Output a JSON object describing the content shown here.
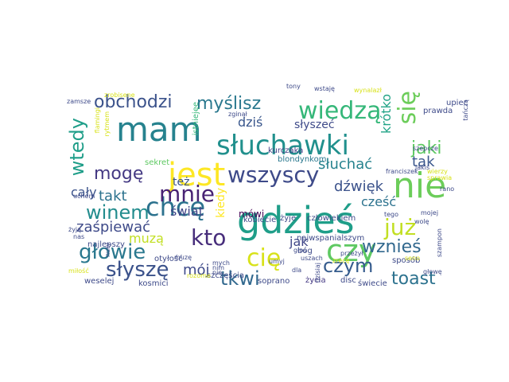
{
  "cloud": {
    "words": [
      {
        "text": "gdzieś",
        "color": "#1f9e89"
      },
      {
        "text": "mam",
        "color": "#26828e"
      },
      {
        "text": "słuchawki",
        "color": "#21908d"
      },
      {
        "text": "nie",
        "color": "#6ccd5a"
      },
      {
        "text": "jest",
        "color": "#fde725"
      },
      {
        "text": "czy",
        "color": "#5ec962"
      },
      {
        "text": "chcę",
        "color": "#2c728e"
      },
      {
        "text": "wiedzą",
        "color": "#35b779"
      },
      {
        "text": "się",
        "color": "#6ccd5a"
      },
      {
        "text": "wszyscy",
        "color": "#3e4a89"
      },
      {
        "text": "obchodzi",
        "color": "#3b528b"
      },
      {
        "text": "myślisz",
        "color": "#2a788e"
      },
      {
        "text": "wtedy",
        "color": "#1f9e89"
      },
      {
        "text": "mogę",
        "color": "#443983"
      },
      {
        "text": "mnie",
        "color": "#482374"
      },
      {
        "text": "kto",
        "color": "#472d7b"
      },
      {
        "text": "cię",
        "color": "#d8e219"
      },
      {
        "text": "głowie",
        "color": "#2a788e"
      },
      {
        "text": "słyszę",
        "color": "#3b528b"
      },
      {
        "text": "już",
        "color": "#c2df23"
      },
      {
        "text": "wznieś",
        "color": "#31688e"
      },
      {
        "text": "czym",
        "color": "#365c8d"
      },
      {
        "text": "toast",
        "color": "#2c728e"
      },
      {
        "text": "tkwi",
        "color": "#31688e"
      },
      {
        "text": "winem",
        "color": "#228c8d"
      },
      {
        "text": "jaki",
        "color": "#5ec962"
      },
      {
        "text": "dźwięk",
        "color": "#3b528b"
      },
      {
        "text": "tak",
        "color": "#39568c"
      },
      {
        "text": "krótko",
        "color": "#20a386"
      },
      {
        "text": "dziś",
        "color": "#39568c"
      },
      {
        "text": "słyszeć",
        "color": "#3e4a89"
      },
      {
        "text": "słuchać",
        "color": "#26828e"
      },
      {
        "text": "takt",
        "color": "#2c728e"
      },
      {
        "text": "też",
        "color": "#3b528b"
      },
      {
        "text": "cały",
        "color": "#3b528b"
      },
      {
        "text": "świat",
        "color": "#404688"
      },
      {
        "text": "zaśpiewać",
        "color": "#3e4a89"
      },
      {
        "text": "muzą",
        "color": "#c2df23"
      },
      {
        "text": "kiedy",
        "color": "#fde725"
      },
      {
        "text": "mój",
        "color": "#3e4a89"
      },
      {
        "text": "jak",
        "color": "#404688"
      },
      {
        "text": "cześć",
        "color": "#2c728e"
      },
      {
        "text": "mówi",
        "color": "#440154"
      },
      {
        "text": "istniejęe",
        "color": "#35b779"
      },
      {
        "text": "kurczaka",
        "color": "#433e85"
      },
      {
        "text": "blondynkom",
        "color": "#2a788e"
      },
      {
        "text": "sekret",
        "color": "#5ec962"
      },
      {
        "text": "najlepszy",
        "color": "#3e4a89"
      },
      {
        "text": "otyłość",
        "color": "#3e4a89"
      },
      {
        "text": "weselej",
        "color": "#3e4a89"
      },
      {
        "text": "kosmici",
        "color": "#3e4a89"
      },
      {
        "text": "szczęścia",
        "color": "#3e4a89"
      },
      {
        "text": "soprano",
        "color": "#3e4a89"
      },
      {
        "text": "życia",
        "color": "#443983"
      },
      {
        "text": "disc",
        "color": "#3e4a89"
      },
      {
        "text": "świecie",
        "color": "#3e4a89"
      },
      {
        "text": "sposób",
        "color": "#3e4a89"
      },
      {
        "text": "bóg",
        "color": "#3e4a89"
      },
      {
        "text": "najwspanialszym",
        "color": "#3e4a89"
      },
      {
        "text": "człowiekiem",
        "color": "#3e4a89"
      },
      {
        "text": "kobiecie",
        "color": "#3e4a89"
      },
      {
        "text": "żyje",
        "color": "#3e4a89"
      },
      {
        "text": "upiec",
        "color": "#3e4a89"
      },
      {
        "text": "prawda",
        "color": "#3e4a89"
      },
      {
        "text": "tony",
        "color": "#3e4a89"
      },
      {
        "text": "wstaję",
        "color": "#3e4a89"
      },
      {
        "text": "wynalazł",
        "color": "#d8e219"
      },
      {
        "text": "tańczą",
        "color": "#3e4a89"
      },
      {
        "text": "szepcze",
        "color": "#3e4a89"
      },
      {
        "text": "franciszek",
        "color": "#3e4a89"
      },
      {
        "text": "wierzy",
        "color": "#d8e219"
      },
      {
        "text": "sprawia",
        "color": "#d8e219"
      },
      {
        "text": "jakiś",
        "color": "#3e4a89"
      },
      {
        "text": "zginął",
        "color": "#3e4a89"
      },
      {
        "text": "zrobisene",
        "color": "#d8e219"
      },
      {
        "text": "zamsze",
        "color": "#3e4a89"
      },
      {
        "text": "flamingi",
        "color": "#d8e219"
      },
      {
        "text": "rytmem",
        "color": "#d8e219"
      },
      {
        "text": "nuty",
        "color": "#3e4a89"
      },
      {
        "text": "uchem",
        "color": "#3e4a89"
      },
      {
        "text": "żyją",
        "color": "#3e4a89"
      },
      {
        "text": "nas",
        "color": "#3e4a89"
      },
      {
        "text": "miłość",
        "color": "#d8e219"
      },
      {
        "text": "muzę",
        "color": "#3e4a89"
      },
      {
        "text": "mych",
        "color": "#3e4a89"
      },
      {
        "text": "nim",
        "color": "#3e4a89"
      },
      {
        "text": "nie",
        "color": "#3e4a89"
      },
      {
        "text": "umyj",
        "color": "#3e4a89"
      },
      {
        "text": "rozome",
        "color": "#d8e219"
      },
      {
        "text": "dla",
        "color": "#3e4a89"
      },
      {
        "text": "głos",
        "color": "#3e4a89"
      },
      {
        "text": "uszach",
        "color": "#3e4a89"
      },
      {
        "text": "dzisiaj",
        "color": "#3e4a89"
      },
      {
        "text": "przeżył",
        "color": "#3e4a89"
      },
      {
        "text": "zrecę",
        "color": "#d8e219"
      },
      {
        "text": "tego",
        "color": "#3e4a89"
      },
      {
        "text": "mojej",
        "color": "#3e4a89"
      },
      {
        "text": "wolę",
        "color": "#3e4a89"
      },
      {
        "text": "seno",
        "color": "#d8e219"
      },
      {
        "text": "rano",
        "color": "#3e4a89"
      },
      {
        "text": "szampon",
        "color": "#3e4a89"
      },
      {
        "text": "głowę",
        "color": "#3e4a89"
      }
    ]
  }
}
